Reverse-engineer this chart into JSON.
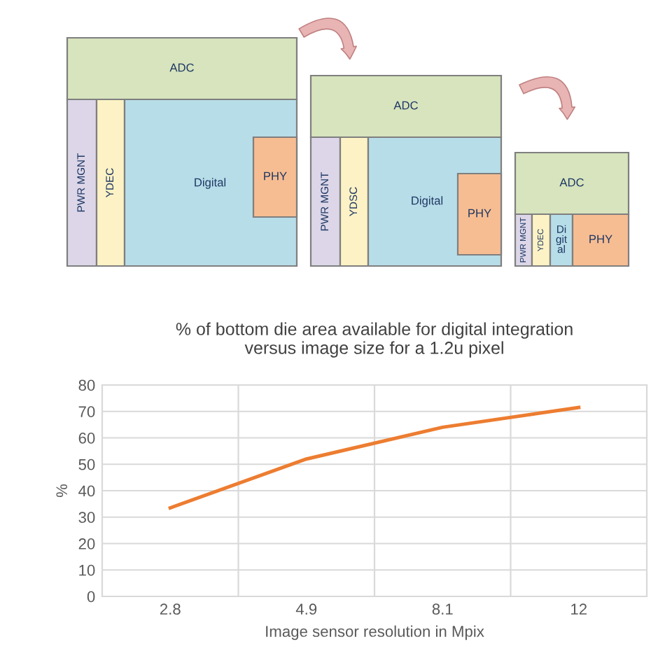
{
  "chart_data": [
    {
      "type": "other",
      "annotations": [
        "ADC",
        "PWR MGNT",
        "YDEC",
        "Digital",
        "PHY",
        "ADC",
        "PWR MGNT",
        "YDSC",
        "Digital",
        "PHY",
        "ADC",
        "PWR MGNT",
        "YDEC",
        "Di\ngit\nal",
        "PHY"
      ]
    },
    {
      "type": "line",
      "title": "% of bottom die area available for digital integration\nversus image size for a 1.2u pixel",
      "xlabel": "Image sensor resolution in Mpix",
      "ylabel": "%",
      "categories": [
        "2.8",
        "4.9",
        "8.1",
        "12"
      ],
      "series": [
        {
          "color": "#ed7d31",
          "values": [
            33.5,
            52,
            64,
            71.5
          ]
        }
      ],
      "ylim": [
        0,
        80
      ],
      "yticks": [
        0,
        10,
        20,
        30,
        40,
        50,
        60,
        70,
        80
      ],
      "grid": true,
      "marker": "none",
      "line_style": "solid"
    }
  ]
}
